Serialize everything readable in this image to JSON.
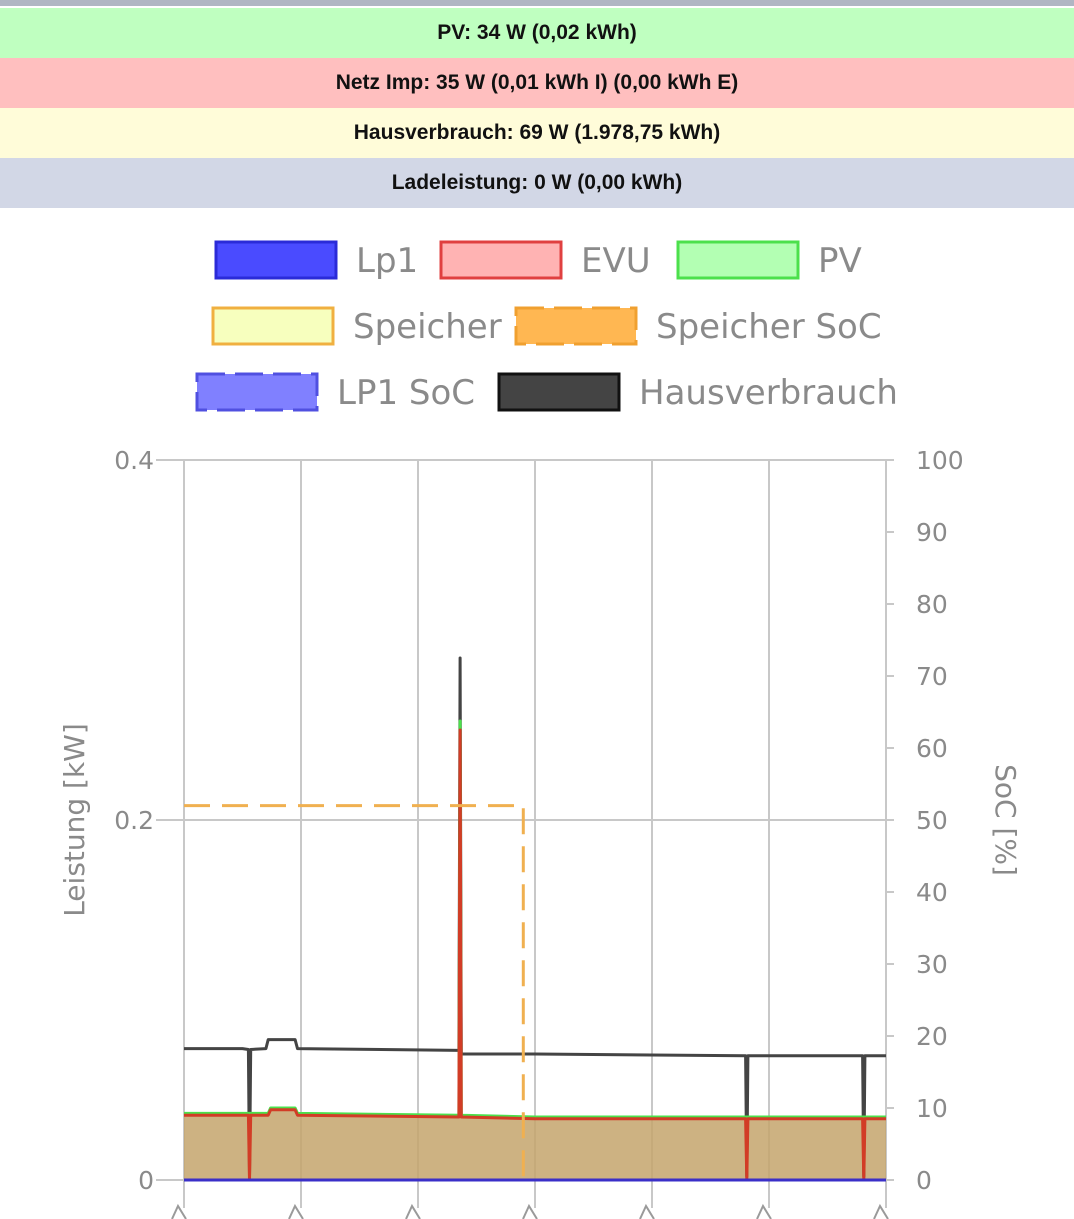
{
  "status_bars": {
    "pv": {
      "text": "PV: 34 W (0,02 kWh)",
      "bg": "#bfffc0"
    },
    "grid": {
      "text": "Netz Imp: 35 W (0,01 kWh I) (0,00 kWh E)",
      "bg": "#ffbfbf"
    },
    "house": {
      "text": "Hausverbrauch: 69 W (1.978,75 kWh)",
      "bg": "#fffcd9"
    },
    "charge": {
      "text": "Ladeleistung: 0 W (0,00 kWh)",
      "bg": "#d2d7e6"
    }
  },
  "chart_data": {
    "type": "line",
    "legend": [
      {
        "label": "Lp1",
        "fill": "#4a4bff",
        "stroke": "#2b2bd8",
        "dashed": false
      },
      {
        "label": "EVU",
        "fill": "#ffb3b3",
        "stroke": "#e04040",
        "dashed": false
      },
      {
        "label": "PV",
        "fill": "#b3ffb3",
        "stroke": "#4ce04c",
        "dashed": false
      },
      {
        "label": "Speicher",
        "fill": "#f7ffbe",
        "stroke": "#f0b040",
        "dashed": false
      },
      {
        "label": "Speicher SoC",
        "fill": "#ffb752",
        "stroke": "#f0a030",
        "dashed": true
      },
      {
        "label": "LP1 SoC",
        "fill": "#8080ff",
        "stroke": "#5050e0",
        "dashed": true
      },
      {
        "label": "Hausverbrauch",
        "fill": "#444444",
        "stroke": "#111111",
        "dashed": false
      }
    ],
    "y_left": {
      "label": "Leistung [kW]",
      "min": 0,
      "max": 0.4,
      "ticks": [
        "0",
        "0.2",
        "0.4"
      ]
    },
    "y_right": {
      "label": "SoC [%]",
      "min": 0,
      "max": 100,
      "ticks": [
        "0",
        "10",
        "20",
        "30",
        "40",
        "50",
        "60",
        "70",
        "80",
        "90",
        "100"
      ]
    },
    "x": {
      "min": 0,
      "max": 6
    },
    "series": [
      {
        "name": "Hausverbrauch",
        "color": "#444444",
        "points": [
          [
            0,
            0.073
          ],
          [
            0.5,
            0.073
          ],
          [
            0.55,
            0.0725
          ],
          [
            0.56,
            0.002
          ],
          [
            0.57,
            0.0725
          ],
          [
            0.7,
            0.073
          ],
          [
            0.72,
            0.078
          ],
          [
            0.95,
            0.078
          ],
          [
            0.97,
            0.073
          ],
          [
            2.35,
            0.072
          ],
          [
            2.36,
            0.29
          ],
          [
            2.37,
            0.07
          ],
          [
            3.0,
            0.07
          ],
          [
            4.8,
            0.069
          ],
          [
            4.81,
            0.002
          ],
          [
            4.82,
            0.069
          ],
          [
            5.8,
            0.069
          ],
          [
            5.81,
            0.002
          ],
          [
            5.82,
            0.069
          ],
          [
            6,
            0.069
          ]
        ]
      },
      {
        "name": "PV",
        "color": "#4ce04c",
        "points": [
          [
            0,
            0.037
          ],
          [
            0.72,
            0.037
          ],
          [
            0.74,
            0.04
          ],
          [
            0.95,
            0.04
          ],
          [
            0.97,
            0.037
          ],
          [
            2.35,
            0.036
          ],
          [
            2.36,
            0.255
          ],
          [
            2.37,
            0.036
          ],
          [
            3.0,
            0.035
          ],
          [
            6,
            0.035
          ]
        ]
      },
      {
        "name": "EVU",
        "color": "#d23c26",
        "points": [
          [
            0,
            0.036
          ],
          [
            0.55,
            0.036
          ],
          [
            0.56,
            0
          ],
          [
            0.57,
            0.036
          ],
          [
            0.72,
            0.036
          ],
          [
            0.74,
            0.039
          ],
          [
            0.95,
            0.039
          ],
          [
            0.97,
            0.036
          ],
          [
            2.35,
            0.035
          ],
          [
            2.36,
            0.25
          ],
          [
            2.37,
            0.035
          ],
          [
            3.0,
            0.034
          ],
          [
            4.8,
            0.034
          ],
          [
            4.81,
            0
          ],
          [
            4.82,
            0.034
          ],
          [
            5.8,
            0.034
          ],
          [
            5.81,
            0
          ],
          [
            5.82,
            0.034
          ],
          [
            6,
            0.034
          ]
        ]
      },
      {
        "name": "Lp1",
        "color": "#3a2fc8",
        "points": [
          [
            0,
            0
          ],
          [
            6,
            0
          ]
        ]
      },
      {
        "name": "Speicher SoC",
        "color": "#f0b050",
        "axis": "right",
        "dashed": true,
        "points": [
          [
            0,
            52
          ],
          [
            2.9,
            52
          ],
          [
            2.9,
            0
          ]
        ]
      }
    ]
  }
}
